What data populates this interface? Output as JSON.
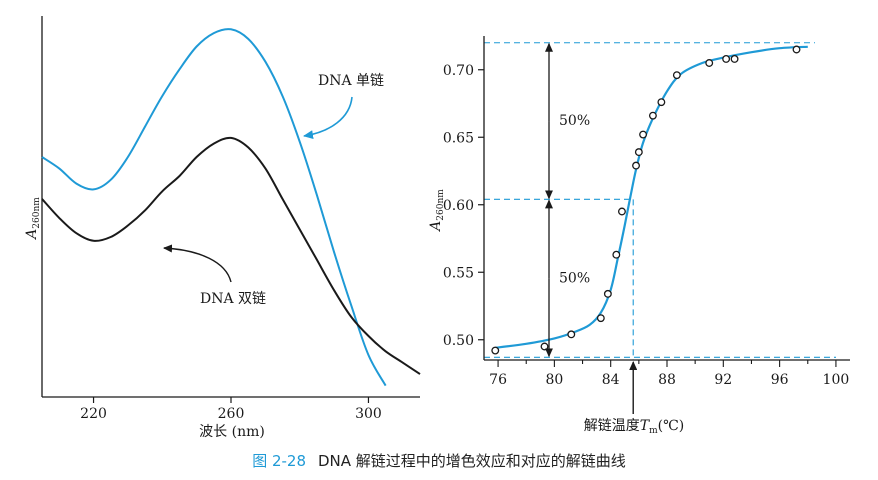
{
  "caption": {
    "figure_number": "图 2-28",
    "text": "DNA 解链过程中的增色效应和对应的解链曲线"
  },
  "colors": {
    "single_strand": "#1f9ad6",
    "double_strand": "#1a1a1a",
    "fit_curve": "#1f9ad6",
    "guide_lines": "#1f9ad6",
    "caption_number": "#1f9ad6"
  },
  "chart_data": [
    {
      "type": "line",
      "title": "",
      "xlabel": "波长 (nm)",
      "ylabel": "A260nm",
      "ylabel_main": "A",
      "ylabel_sub": "260nm",
      "xlim": [
        205,
        315
      ],
      "ylim": [
        0,
        1
      ],
      "x_ticks": [
        220,
        260,
        300
      ],
      "x_tick_labels": [
        "220",
        "260",
        "300"
      ],
      "y_ticks_shown": false,
      "grid": false,
      "series": [
        {
          "name": "DNA 单链",
          "x": [
            205,
            210,
            215,
            220,
            225,
            230,
            235,
            240,
            245,
            250,
            255,
            260,
            265,
            270,
            275,
            280,
            285,
            290,
            295,
            300,
            305
          ],
          "y": [
            0.63,
            0.6,
            0.56,
            0.545,
            0.57,
            0.63,
            0.71,
            0.79,
            0.86,
            0.92,
            0.955,
            0.965,
            0.94,
            0.88,
            0.79,
            0.67,
            0.53,
            0.38,
            0.24,
            0.11,
            0.03
          ]
        },
        {
          "name": "DNA 双链",
          "x": [
            205,
            210,
            215,
            220,
            225,
            230,
            235,
            240,
            245,
            250,
            255,
            260,
            265,
            270,
            275,
            280,
            285,
            290,
            295,
            300,
            305,
            310,
            315
          ],
          "y": [
            0.52,
            0.47,
            0.43,
            0.41,
            0.42,
            0.45,
            0.49,
            0.54,
            0.58,
            0.63,
            0.665,
            0.68,
            0.655,
            0.6,
            0.52,
            0.44,
            0.36,
            0.28,
            0.21,
            0.16,
            0.12,
            0.09,
            0.06
          ]
        }
      ],
      "annotations": [
        {
          "text": "DNA 单链",
          "target_series": "DNA 单链"
        },
        {
          "text": "DNA 双链",
          "target_series": "DNA 双链"
        }
      ]
    },
    {
      "type": "scatter",
      "title": "",
      "xlabel": "解链温度 Tm(℃)",
      "xlabel_pre": "解链温度",
      "xlabel_var": "T",
      "xlabel_sub": "m",
      "xlabel_post": "(℃)",
      "ylabel": "A260nm",
      "ylabel_main": "A",
      "ylabel_sub": "260nm",
      "xlim": [
        75,
        101
      ],
      "ylim": [
        0.485,
        0.725
      ],
      "x_ticks": [
        76,
        80,
        84,
        88,
        92,
        96,
        100
      ],
      "x_tick_labels": [
        "76",
        "80",
        "84",
        "88",
        "92",
        "96",
        "100"
      ],
      "y_ticks": [
        0.5,
        0.55,
        0.6,
        0.65,
        0.7
      ],
      "y_tick_labels": [
        "0.50",
        "0.55",
        "0.60",
        "0.65",
        "0.70"
      ],
      "grid": false,
      "points": {
        "x": [
          75.8,
          79.3,
          81.2,
          83.3,
          83.8,
          84.4,
          84.8,
          85.8,
          86.0,
          86.3,
          87.0,
          87.6,
          88.7,
          91.0,
          92.2,
          92.8,
          97.2
        ],
        "y": [
          0.492,
          0.495,
          0.504,
          0.516,
          0.534,
          0.563,
          0.595,
          0.629,
          0.639,
          0.652,
          0.666,
          0.676,
          0.696,
          0.705,
          0.708,
          0.708,
          0.715
        ]
      },
      "fit_curve": {
        "x": [
          75.8,
          78,
          80,
          81.5,
          82.5,
          83.3,
          84.0,
          84.5,
          85.0,
          85.4,
          85.8,
          86.3,
          87.0,
          88.0,
          89.0,
          90.5,
          92.0,
          94.0,
          96.0,
          98.0
        ],
        "y": [
          0.494,
          0.497,
          0.501,
          0.506,
          0.511,
          0.52,
          0.537,
          0.56,
          0.585,
          0.606,
          0.626,
          0.646,
          0.664,
          0.684,
          0.697,
          0.705,
          0.709,
          0.713,
          0.716,
          0.717
        ]
      },
      "guides": {
        "upper_level": 0.72,
        "mid_level": 0.604,
        "lower_level": 0.487,
        "tm": 85.6
      },
      "annotations": [
        {
          "text": "50%",
          "between": [
            0.604,
            0.72
          ]
        },
        {
          "text": "50%",
          "between": [
            0.487,
            0.604
          ]
        }
      ]
    }
  ]
}
